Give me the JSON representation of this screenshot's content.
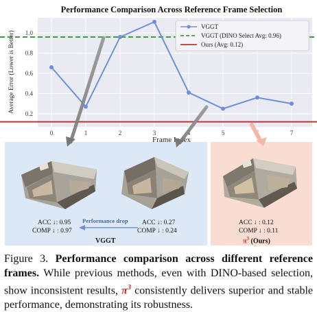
{
  "chart_data": {
    "type": "line",
    "title": "Performance Comparison Across Reference Frame Selection",
    "xlabel": "Frame Index",
    "ylabel": "Average Error (Lower is Better)",
    "x": [
      0,
      1,
      2,
      3,
      4,
      5,
      6,
      7
    ],
    "xlim": [
      -0.4,
      7.6
    ],
    "ylim": [
      0.07,
      1.15
    ],
    "yticks": [
      0.2,
      0.4,
      0.6,
      0.8,
      1.0
    ],
    "ytick_labels": [
      "0.2",
      "0.4",
      "0.6",
      "0.8",
      "1.0"
    ],
    "grid": true,
    "legend_position": "top-right",
    "series": [
      {
        "name": "VGGT",
        "values": [
          0.66,
          0.27,
          0.96,
          1.11,
          0.41,
          0.25,
          0.36,
          0.3
        ],
        "color": "#6f8fd8",
        "style": "solid-marker"
      },
      {
        "name": "VGGT (DINO Select Avg: 0.96)",
        "value": 0.96,
        "color": "#3e9c3e",
        "style": "dashed-hline"
      },
      {
        "name": "Ours (Avg: 0.12)",
        "value": 0.12,
        "color": "#c03434",
        "style": "solid-hline"
      }
    ]
  },
  "panels": {
    "vggt": {
      "label": "VGGT",
      "left": {
        "acc": "ACC ↓: 0.95",
        "comp": "COMP ↓ : 0.97"
      },
      "right": {
        "acc": "ACC ↓: 0.27",
        "comp": "COMP ↓ : 0.24"
      },
      "drop_label": "Performance drop"
    },
    "ours": {
      "acc": "ACC ↓ : 0.12",
      "comp": "COMP ↓ : 0.11",
      "label_symbol": "π",
      "label_sup": "3",
      "label_suffix": " (Ours)"
    }
  },
  "caption": {
    "prefix": "Figure 3. ",
    "bold": "Performance comparison across different reference frames.",
    "text1": " While previous methods, even with DINO-based selection, show inconsistent results, ",
    "pi": "π",
    "pi_sup": "3",
    "text2": " consistently delivers superior and stable performance, demonstrating its robustness."
  },
  "colors": {
    "vggt_panel_bg": "#dde8f6",
    "ours_panel_bg": "#f9ddd2",
    "accent_pi": "#d22222"
  }
}
